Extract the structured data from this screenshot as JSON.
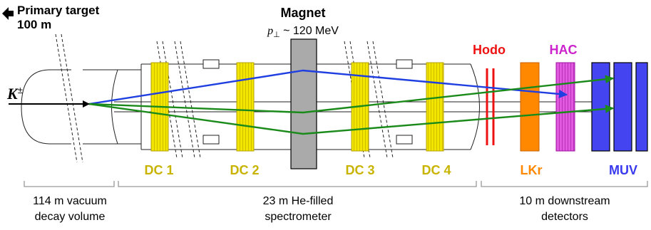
{
  "source": {
    "line1": "Primary target",
    "line2": "100 m"
  },
  "magnet": {
    "title": "Magnet",
    "kick_symbol": "p",
    "kick_subscript": "⊥",
    "kick_value": " ~ 120 MeV"
  },
  "beam": {
    "particle": "K",
    "charge": "±"
  },
  "detectors": {
    "dc1": "DC 1",
    "dc2": "DC 2",
    "dc3": "DC 3",
    "dc4": "DC 4",
    "hodo": "Hodo",
    "hac": "HAC",
    "lkr": "LKr",
    "muv": "MUV"
  },
  "regions": {
    "decay_line1": "114 m vacuum",
    "decay_line2": "decay volume",
    "spectrometer_line1": "23 m He-filled",
    "spectrometer_line2": "spectrometer",
    "downstream_line1": "10 m downstream",
    "downstream_line2": "detectors"
  },
  "colors": {
    "dc": "#c8b400",
    "dc_fill": "#f2e600",
    "hodo": "#ee1111",
    "hac": "#cc22cc",
    "lkr": "#ff8800",
    "muv": "#3a3aee",
    "track_blue": "#1f3fe0",
    "track_green": "#1a8a1a",
    "magnet": "#aaaaaa"
  }
}
